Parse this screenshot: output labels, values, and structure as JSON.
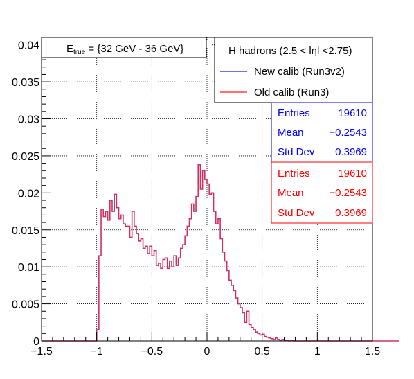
{
  "chart_data": {
    "type": "histogram",
    "title_box": {
      "prefix": "E",
      "subscript": "true",
      "suffix": " =  {32 GeV - 36 GeV}"
    },
    "legend": {
      "header": "H hadrons (2.5 < lηl <2.75)",
      "entries": [
        {
          "label": "New calib (Run3v2)",
          "color": "#4040ff"
        },
        {
          "label": "Old calib (Run3)",
          "color": "#ff4040"
        }
      ]
    },
    "stats": [
      {
        "color": "#0000ff",
        "rows": [
          {
            "label": "Entries",
            "value": "19610"
          },
          {
            "label": "Mean",
            "value": "−0.2543"
          },
          {
            "label": "Std Dev",
            "value": "0.3969"
          }
        ]
      },
      {
        "color": "#ff0000",
        "rows": [
          {
            "label": "Entries",
            "value": "19610"
          },
          {
            "label": "Mean",
            "value": "−0.2543"
          },
          {
            "label": "Std Dev",
            "value": "0.3969"
          }
        ]
      }
    ],
    "xlim": [
      -1.5,
      1.5
    ],
    "ylim": [
      0,
      0.041
    ],
    "x_ticks": [
      {
        "v": -1.5,
        "label": "−1.5"
      },
      {
        "v": -1,
        "label": "−1"
      },
      {
        "v": -0.5,
        "label": "−0.5"
      },
      {
        "v": 0,
        "label": "0"
      },
      {
        "v": 0.5,
        "label": "0.5"
      },
      {
        "v": 1,
        "label": "1"
      },
      {
        "v": 1.5,
        "label": "1.5"
      }
    ],
    "y_ticks": [
      {
        "v": 0,
        "label": "0"
      },
      {
        "v": 0.005,
        "label": "0.005"
      },
      {
        "v": 0.01,
        "label": "0.01"
      },
      {
        "v": 0.015,
        "label": "0.015"
      },
      {
        "v": 0.02,
        "label": "0.02"
      },
      {
        "v": 0.025,
        "label": "0.025"
      },
      {
        "v": 0.03,
        "label": "0.03"
      },
      {
        "v": 0.035,
        "label": "0.035"
      },
      {
        "v": 0.04,
        "label": "0.04"
      }
    ],
    "grid": true,
    "bin_width": 0.02,
    "x_start": -1.5,
    "series": [
      {
        "name": "New calib (Run3v2)",
        "color": "#d03060",
        "values": [
          0,
          0,
          0,
          0,
          0,
          0,
          0,
          0,
          0,
          0,
          0,
          0,
          0,
          0,
          0,
          0,
          0,
          0,
          0,
          0,
          0,
          0,
          0,
          0,
          0,
          0.0015,
          0.0115,
          0.0178,
          0.0168,
          0.0175,
          0.0163,
          0.019,
          0.0175,
          0.0198,
          0.018,
          0.0165,
          0.017,
          0.0158,
          0.0155,
          0.0155,
          0.014,
          0.0175,
          0.0155,
          0.0145,
          0.0135,
          0.0138,
          0.0125,
          0.0128,
          0.0118,
          0.0128,
          0.0115,
          0.0122,
          0.0102,
          0.0105,
          0.0098,
          0.011,
          0.0112,
          0.0098,
          0.0108,
          0.01,
          0.0115,
          0.0102,
          0.0112,
          0.0125,
          0.013,
          0.0142,
          0.0155,
          0.0165,
          0.0185,
          0.0175,
          0.0195,
          0.0238,
          0.0205,
          0.023,
          0.0218,
          0.0212,
          0.0198,
          0.02,
          0.0175,
          0.0158,
          0.0165,
          0.0138,
          0.012,
          0.0108,
          0.0095,
          0.0082,
          0.0075,
          0.0068,
          0.0058,
          0.005,
          0.0045,
          0.0038,
          0.0025,
          0.004,
          0.0022,
          0.0018,
          0.0015,
          0.0012,
          0.001,
          0.0008,
          0.0009,
          0.0006,
          0.0005,
          0.0004,
          0.0003,
          0.0002,
          0.0004,
          0.0002,
          0.0001,
          0.0002,
          0.0001,
          0.0001,
          0,
          0.0001,
          0,
          0,
          0,
          0,
          0,
          0,
          0,
          0,
          0,
          0,
          0,
          0,
          0,
          0,
          0,
          0,
          0,
          0,
          0,
          0,
          0,
          0,
          0,
          0,
          0,
          0,
          0,
          0,
          0,
          0,
          0,
          0,
          0,
          0,
          0,
          0,
          0,
          0,
          0,
          0,
          0,
          0,
          0,
          0,
          0,
          0,
          0,
          0
        ]
      }
    ]
  }
}
